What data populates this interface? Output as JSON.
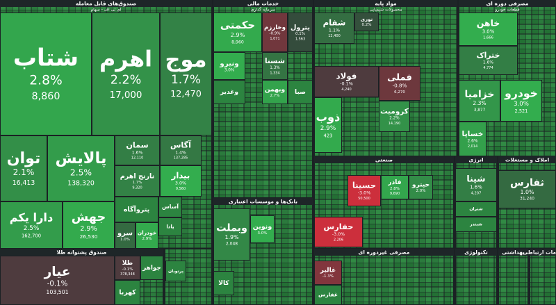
{
  "chart_data": {
    "type": "treemap",
    "groups": [
      {
        "name": "صندوق‌های قابل معامله",
        "subtitle": "ای تی اف - سهام",
        "tiles": [
          {
            "name": "شتاب",
            "value": 2.8,
            "value_label": "2.8%",
            "price": "8,860"
          },
          {
            "name": "اهرم",
            "value": 2.2,
            "value_label": "2.2%",
            "price": "17,000"
          },
          {
            "name": "موج",
            "value": 1.7,
            "value_label": "1.7%",
            "price": "12,470"
          },
          {
            "name": "توان",
            "value": 2.1,
            "value_label": "2.1%",
            "price": "16,413"
          },
          {
            "name": "پالایش",
            "value": 2.5,
            "value_label": "2.5%",
            "price": "138,320"
          },
          {
            "name": "سمان",
            "value": 1.6,
            "value_label": "1.6%",
            "price": "12,110"
          },
          {
            "name": "نارنج اهرم",
            "value": 1.7,
            "value_label": "1.7%",
            "price": "9,320"
          },
          {
            "name": "آگاس",
            "value": 1.4,
            "value_label": "1.4%",
            "price": "137,285"
          },
          {
            "name": "بیدار",
            "value": 3.0,
            "value_label": "3.0%",
            "price": "9,560"
          },
          {
            "name": "دارا یکم",
            "value": 2.5,
            "value_label": "2.5%",
            "price": "162,700"
          },
          {
            "name": "جهش",
            "value": 2.9,
            "value_label": "2.9%",
            "price": "26,530"
          },
          {
            "name": "پتروآگاه"
          },
          {
            "name": "سرو",
            "value": 1.0,
            "value_label": "1.0%"
          },
          {
            "name": "خودران",
            "value": 2.9,
            "value_label": "2.9%"
          },
          {
            "name": "آساس"
          },
          {
            "name": "پادا"
          }
        ]
      },
      {
        "name": "صندوق پشتوانه طلا",
        "tiles": [
          {
            "name": "عیار",
            "value": -0.1,
            "value_label": "-0.1%",
            "price": "103,501"
          },
          {
            "name": "طلا",
            "value": -0.1,
            "value_label": "-0.1%",
            "price": "378,348"
          },
          {
            "name": "کهربا"
          },
          {
            "name": "جواهر"
          }
        ]
      },
      {
        "name": "خدمات مالی",
        "subtitle": "سرمایه گذاری",
        "tiles": [
          {
            "name": "حکمتی",
            "value": 2.9,
            "value_label": "2.9%",
            "price": "8,960"
          },
          {
            "name": "وخارزم",
            "value": -0.9,
            "value_label": "-0.9%",
            "price": "1,071"
          },
          {
            "name": "پترول",
            "value": 0.1,
            "value_label": "0.1%",
            "price": "1,563"
          },
          {
            "name": "ونیرو",
            "value": 3.0,
            "value_label": "3.0%"
          },
          {
            "name": "شستا",
            "value": 1.3,
            "value_label": "1.3%",
            "price": "1,334"
          },
          {
            "name": "وغدیر"
          },
          {
            "name": "وبهمن",
            "value": 2.7,
            "value_label": "2.7%"
          },
          {
            "name": "صبا"
          }
        ]
      },
      {
        "name": "بانک‌ها و موسسات اعتباری",
        "tiles": [
          {
            "name": "وبملت",
            "value": 1.9,
            "value_label": "1.9%",
            "price": "2,048"
          },
          {
            "name": "ونوین",
            "value": 3.0,
            "value_label": "3.0%"
          },
          {
            "name": "کالا"
          }
        ]
      },
      {
        "name": "مواد پایه",
        "subtitle": "محصولات شیمیایی",
        "tiles": [
          {
            "name": "شفام",
            "value": 1.1,
            "value_label": "1.1%",
            "price": "12,400"
          },
          {
            "name": "نوری",
            "value": 0.2,
            "value_label": "0.2%"
          },
          {
            "name": "فولاد",
            "value": -0.1,
            "value_label": "-0.1%",
            "price": "4,240"
          },
          {
            "name": "فملی",
            "value": -0.8,
            "value_label": "-0.8%",
            "price": "6,270"
          },
          {
            "name": "ذوب",
            "value": 2.9,
            "value_label": "2.9%",
            "price": "423"
          },
          {
            "name": "کرومیت",
            "value": 2.2,
            "value_label": "2.2%",
            "price": "14,190"
          }
        ]
      },
      {
        "name": "مصرفی دوره ای",
        "subtitle": "قطعات خودرو",
        "tiles": [
          {
            "name": "خاهن",
            "value": 3.0,
            "value_label": "3.0%",
            "price": "1,666"
          },
          {
            "name": "ختراک",
            "value": 1.6,
            "value_label": "1.6%",
            "price": "4,774"
          },
          {
            "name": "خزامیا",
            "value": 2.3,
            "value_label": "2.3%",
            "price": "3,877"
          },
          {
            "name": "خودرو",
            "value": 3.0,
            "value_label": "3.0%",
            "price": "2,521"
          },
          {
            "name": "خساپا",
            "value": 2.6,
            "value_label": "2.6%",
            "price": "2,014"
          }
        ]
      },
      {
        "name": "صنعتی",
        "tiles": [
          {
            "name": "حسینا",
            "value": -3.0,
            "value_label": "-3.0%",
            "price": "50,500"
          },
          {
            "name": "فاذر",
            "value": 2.8,
            "value_label": "2.8%",
            "price": "9,690"
          },
          {
            "name": "حپترو",
            "value": 2.0,
            "value_label": "2.0%"
          },
          {
            "name": "حفارس",
            "value": -3.0,
            "value_label": "-3.0%",
            "price": "2,206"
          }
        ]
      },
      {
        "name": "انرژی",
        "tiles": [
          {
            "name": "شپنا",
            "value": 1.6,
            "value_label": "1.6%",
            "price": "4,207"
          },
          {
            "name": "شتران"
          },
          {
            "name": "شبندر"
          }
        ]
      },
      {
        "name": "املاک و مستغلات",
        "tiles": [
          {
            "name": "ثفارس",
            "value": 1.0,
            "value_label": "1.0%",
            "price": "31,240"
          }
        ]
      },
      {
        "name": "مصرفی غیردوره ای",
        "tiles": [
          {
            "name": "غالبر",
            "value": -1.3,
            "value_label": "-1.3%"
          },
          {
            "name": "غفارس"
          }
        ]
      },
      {
        "name": "تکنولوژی",
        "tiles": []
      },
      {
        "name": "بهداشتی",
        "tiles": []
      },
      {
        "name": "خدمات ارتباطی",
        "tiles": []
      },
      {
        "tiles": [
          {
            "name": "پرتوبان"
          }
        ]
      }
    ]
  }
}
